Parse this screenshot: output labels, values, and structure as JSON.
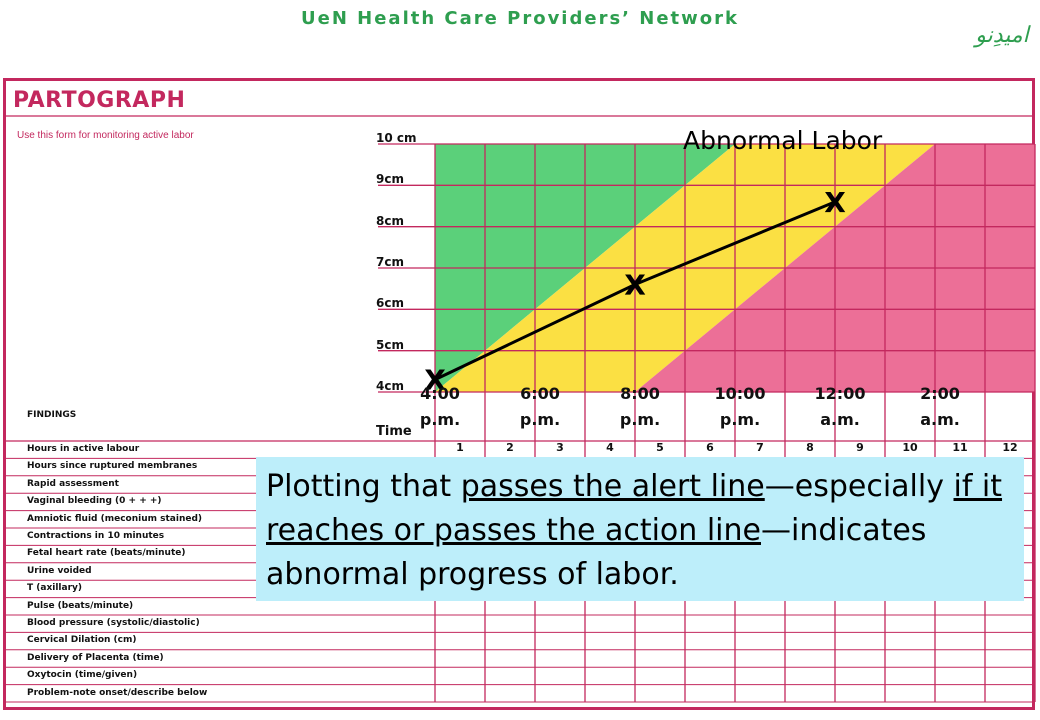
{
  "header": {
    "title": "UeN Health Care Providers’ Network",
    "logo": "امیدِنو"
  },
  "form": {
    "title": "PARTOGRAPH",
    "instruction": "Use this form for monitoring active labor",
    "findings_heading": "FINDINGS",
    "time_label": "Time",
    "hours": [
      "1",
      "2",
      "3",
      "4",
      "5",
      "6",
      "7",
      "8",
      "9",
      "10",
      "11",
      "12"
    ],
    "rows": [
      "Hours in active labour",
      "Hours since ruptured membranes",
      "Rapid assessment",
      "Vaginal bleeding (0 + + +)",
      "Amniotic fluid (meconium stained)",
      "Contractions in 10 minutes",
      "Fetal heart rate (beats/minute)",
      "Urine voided",
      "T (axillary)",
      "Pulse (beats/minute)",
      "Blood pressure (systolic/diastolic)",
      "Cervical Dilation (cm)",
      "Delivery of Placenta (time)",
      "Oxytocin (time/given)",
      "Problem-note onset/describe below"
    ],
    "colors": {
      "border": "#c3285e",
      "green": "#5bd07a",
      "yellow": "#fbe043",
      "pink": "#ec6f97"
    }
  },
  "chart_data": {
    "type": "line",
    "ylabel_ticks": [
      "10 cm",
      "9cm",
      "8cm",
      "7cm",
      "6cm",
      "5cm",
      "4cm"
    ],
    "y_values": [
      10,
      9,
      8,
      7,
      6,
      5,
      4
    ],
    "ylim": [
      4,
      10
    ],
    "xlim": [
      0,
      12
    ],
    "time_labels": [
      {
        "hour": 0,
        "line1": "4:00",
        "line2": "p.m."
      },
      {
        "hour": 2,
        "line1": "6:00",
        "line2": "p.m."
      },
      {
        "hour": 4,
        "line1": "8:00",
        "line2": "p.m."
      },
      {
        "hour": 6,
        "line1": "10:00",
        "line2": "p.m."
      },
      {
        "hour": 8,
        "line1": "12:00",
        "line2": "a.m."
      },
      {
        "hour": 10,
        "line1": "2:00",
        "line2": "a.m."
      }
    ],
    "alert_line": {
      "x": [
        0,
        6
      ],
      "y": [
        4,
        10
      ]
    },
    "action_line": {
      "x": [
        4,
        10
      ],
      "y": [
        4,
        10
      ]
    },
    "series": [
      {
        "marker": "X",
        "points": [
          {
            "x": 0,
            "y": 4.3
          },
          {
            "x": 4,
            "y": 6.6
          },
          {
            "x": 8,
            "y": 8.6
          }
        ]
      }
    ],
    "annotation": "Abnormal Labor"
  },
  "callout": {
    "part1": "Plotting that ",
    "part2": "passes the alert line",
    "part3": "—especially ",
    "part4": "if it reaches or passes the action line",
    "part5": "—indicates abnormal progress of labor."
  }
}
